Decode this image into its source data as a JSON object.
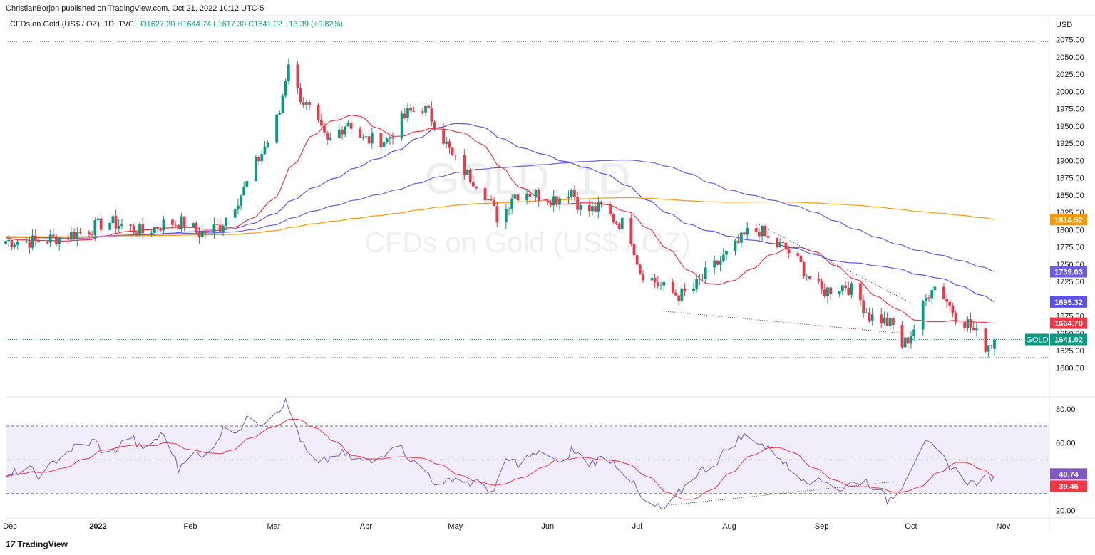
{
  "header": {
    "publisher_text": "ChristianBorjon published on TradingView.com, Oct 21, 2022 10:12 UTC-5"
  },
  "legend": {
    "symbol_text": "CFDs on Gold (US$ / OZ), 1D, TVC",
    "open": "O1627.20",
    "high": "H1644.74",
    "low": "L1617.30",
    "close": "C1641.02",
    "change": "+13.39 (+0.82%)"
  },
  "watermark": {
    "line1": "GOLD, 1D",
    "line2": "CFDs on Gold (US$ / OZ)"
  },
  "footer": {
    "brand": "TradingView",
    "logo_glyph": "17"
  },
  "colors": {
    "up": "#089981",
    "down": "#f23645",
    "ma20": "#f23645",
    "ma50": "#5b4ff0",
    "ma100": "#6a5ce6",
    "ma200": "#ff9800",
    "rsi": "#7e57c2",
    "rsi_ma": "#f23645",
    "rsi_band": "#ede7f6"
  },
  "chart_data": [
    {
      "type": "candlestick",
      "symbol": "GOLD",
      "currency_label": "USD",
      "ylim": [
        1590,
        2085
      ],
      "y_ticks": [
        "2075.00",
        "2050.00",
        "2025.00",
        "2000.00",
        "1975.00",
        "1950.00",
        "1925.00",
        "1900.00",
        "1875.00",
        "1850.00",
        "1825.00",
        "1800.00",
        "1775.00",
        "1750.00",
        "1725.00",
        "1700.00",
        "1675.00",
        "1650.00",
        "1625.00",
        "1600.00"
      ],
      "x_labels": [
        {
          "label": "Dec",
          "day": 0,
          "bold": false
        },
        {
          "label": "2022",
          "day": 31,
          "bold": true
        },
        {
          "label": "Feb",
          "day": 62,
          "bold": false
        },
        {
          "label": "Mar",
          "day": 90,
          "bold": false
        },
        {
          "label": "Apr",
          "day": 121,
          "bold": false
        },
        {
          "label": "May",
          "day": 151,
          "bold": false
        },
        {
          "label": "Jun",
          "day": 182,
          "bold": false
        },
        {
          "label": "Jul",
          "day": 212,
          "bold": false
        },
        {
          "label": "Aug",
          "day": 243,
          "bold": false
        },
        {
          "label": "Sep",
          "day": 274,
          "bold": false
        },
        {
          "label": "Oct",
          "day": 304,
          "bold": false
        },
        {
          "label": "Nov",
          "day": 335,
          "bold": false
        }
      ],
      "day_range": [
        0,
        338
      ],
      "anchors": [
        [
          0,
          1784
        ],
        [
          10,
          1783
        ],
        [
          20,
          1790
        ],
        [
          28,
          1800
        ],
        [
          34,
          1812
        ],
        [
          40,
          1805
        ],
        [
          46,
          1796
        ],
        [
          54,
          1810
        ],
        [
          60,
          1810
        ],
        [
          65,
          1795
        ],
        [
          72,
          1805
        ],
        [
          80,
          1858
        ],
        [
          84,
          1895
        ],
        [
          88,
          1927
        ],
        [
          92,
          1970
        ],
        [
          95,
          2045
        ],
        [
          98,
          2000
        ],
        [
          103,
          1965
        ],
        [
          108,
          1925
        ],
        [
          115,
          1958
        ],
        [
          120,
          1930
        ],
        [
          128,
          1930
        ],
        [
          135,
          1968
        ],
        [
          140,
          1978
        ],
        [
          145,
          1950
        ],
        [
          150,
          1905
        ],
        [
          155,
          1880
        ],
        [
          160,
          1862
        ],
        [
          163,
          1835
        ],
        [
          166,
          1810
        ],
        [
          170,
          1850
        ],
        [
          175,
          1855
        ],
        [
          180,
          1848
        ],
        [
          185,
          1845
        ],
        [
          190,
          1858
        ],
        [
          193,
          1830
        ],
        [
          196,
          1828
        ],
        [
          200,
          1832
        ],
        [
          205,
          1812
        ],
        [
          209,
          1805
        ],
        [
          213,
          1740
        ],
        [
          218,
          1725
        ],
        [
          222,
          1712
        ],
        [
          226,
          1705
        ],
        [
          230,
          1710
        ],
        [
          235,
          1735
        ],
        [
          240,
          1755
        ],
        [
          245,
          1775
        ],
        [
          249,
          1795
        ],
        [
          253,
          1800
        ],
        [
          257,
          1780
        ],
        [
          261,
          1775
        ],
        [
          265,
          1760
        ],
        [
          270,
          1730
        ],
        [
          274,
          1710
        ],
        [
          278,
          1715
        ],
        [
          282,
          1720
        ],
        [
          286,
          1705
        ],
        [
          290,
          1675
        ],
        [
          294,
          1670
        ],
        [
          298,
          1660
        ],
        [
          301,
          1632
        ],
        [
          303,
          1642
        ],
        [
          306,
          1665
        ],
        [
          309,
          1700
        ],
        [
          311,
          1720
        ],
        [
          314,
          1713
        ],
        [
          317,
          1690
        ],
        [
          320,
          1670
        ],
        [
          323,
          1665
        ],
        [
          326,
          1648
        ],
        [
          329,
          1632
        ],
        [
          332,
          1641
        ]
      ],
      "last_candle": {
        "open": 1627.2,
        "high": 1644.74,
        "low": 1617.3,
        "close": 1641.02
      },
      "moving_averages": [
        {
          "period": 20,
          "last": "1664.70",
          "color": "#f23645"
        },
        {
          "period": 50,
          "last": "1695.32",
          "color": "#5b4ff0"
        },
        {
          "period": 100,
          "last": "1739.03",
          "color": "#6a5ce6"
        },
        {
          "period": 200,
          "last": "1814.52",
          "color": "#ff9800"
        }
      ],
      "price_label": {
        "name": "GOLD",
        "value": "1641.02"
      },
      "trendlines": [
        {
          "from": [
            221,
            1682
          ],
          "to": [
            301,
            1650
          ]
        },
        {
          "from": [
            253,
            1807
          ],
          "to": [
            304,
            1694
          ]
        }
      ],
      "range_lines": [
        2072,
        1641.02,
        1615
      ]
    },
    {
      "type": "line",
      "name": "RSI",
      "ylim": [
        16,
        86
      ],
      "y_ticks": [
        "80.00",
        "60.00",
        "40.00",
        "20.00"
      ],
      "bands": {
        "upper": 70,
        "mid": 50,
        "lower": 30
      },
      "rsi_last": "40.74",
      "rsi_ma_last": "39.46",
      "rsi_anchors": [
        [
          0,
          38
        ],
        [
          6,
          46
        ],
        [
          12,
          40
        ],
        [
          18,
          52
        ],
        [
          24,
          58
        ],
        [
          30,
          61
        ],
        [
          34,
          52
        ],
        [
          38,
          58
        ],
        [
          42,
          64
        ],
        [
          46,
          55
        ],
        [
          50,
          62
        ],
        [
          54,
          66
        ],
        [
          58,
          44
        ],
        [
          62,
          58
        ],
        [
          66,
          50
        ],
        [
          70,
          60
        ],
        [
          74,
          70
        ],
        [
          78,
          68
        ],
        [
          82,
          75
        ],
        [
          86,
          72
        ],
        [
          90,
          78
        ],
        [
          94,
          84
        ],
        [
          97,
          72
        ],
        [
          100,
          58
        ],
        [
          104,
          46
        ],
        [
          108,
          50
        ],
        [
          112,
          54
        ],
        [
          118,
          50
        ],
        [
          124,
          48
        ],
        [
          130,
          60
        ],
        [
          134,
          55
        ],
        [
          138,
          46
        ],
        [
          142,
          42
        ],
        [
          146,
          32
        ],
        [
          150,
          40
        ],
        [
          156,
          36
        ],
        [
          160,
          36
        ],
        [
          164,
          30
        ],
        [
          168,
          50
        ],
        [
          172,
          48
        ],
        [
          176,
          52
        ],
        [
          182,
          54
        ],
        [
          186,
          46
        ],
        [
          190,
          56
        ],
        [
          196,
          48
        ],
        [
          202,
          52
        ],
        [
          206,
          46
        ],
        [
          210,
          38
        ],
        [
          214,
          25
        ],
        [
          218,
          22
        ],
        [
          222,
          20
        ],
        [
          226,
          30
        ],
        [
          232,
          42
        ],
        [
          238,
          48
        ],
        [
          244,
          60
        ],
        [
          248,
          64
        ],
        [
          252,
          62
        ],
        [
          256,
          56
        ],
        [
          260,
          52
        ],
        [
          264,
          42
        ],
        [
          268,
          40
        ],
        [
          272,
          36
        ],
        [
          276,
          38
        ],
        [
          280,
          32
        ],
        [
          284,
          36
        ],
        [
          288,
          38
        ],
        [
          292,
          34
        ],
        [
          296,
          26
        ],
        [
          300,
          32
        ],
        [
          304,
          46
        ],
        [
          308,
          60
        ],
        [
          312,
          56
        ],
        [
          316,
          48
        ],
        [
          320,
          42
        ],
        [
          324,
          36
        ],
        [
          328,
          38
        ],
        [
          332,
          41
        ]
      ],
      "trendlines": [
        {
          "from": [
            222,
            23
          ],
          "to": [
            298,
            37
          ]
        }
      ]
    }
  ]
}
